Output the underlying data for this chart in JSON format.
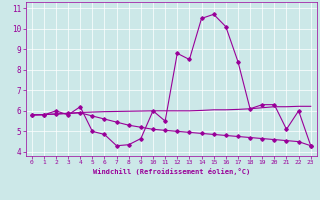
{
  "xlabel": "Windchill (Refroidissement éolien,°C)",
  "bg_color": "#cce8e8",
  "axis_bg_color": "#cce8e8",
  "bottom_bar_color": "#660066",
  "line_color": "#990099",
  "xlim": [
    -0.5,
    23.5
  ],
  "ylim": [
    3.8,
    11.3
  ],
  "yticks": [
    4,
    5,
    6,
    7,
    8,
    9,
    10,
    11
  ],
  "xticks": [
    0,
    1,
    2,
    3,
    4,
    5,
    6,
    7,
    8,
    9,
    10,
    11,
    12,
    13,
    14,
    15,
    16,
    17,
    18,
    19,
    20,
    21,
    22,
    23
  ],
  "series1_x": [
    0,
    1,
    2,
    3,
    4,
    5,
    6,
    7,
    8,
    9,
    10,
    11,
    12,
    13,
    14,
    15,
    16,
    17,
    18,
    19,
    20,
    21,
    22,
    23
  ],
  "series1_y": [
    5.8,
    5.8,
    6.0,
    5.8,
    6.2,
    5.0,
    4.85,
    4.3,
    4.35,
    4.65,
    6.0,
    5.5,
    8.8,
    8.5,
    10.5,
    10.7,
    10.1,
    8.4,
    6.1,
    6.3,
    6.3,
    5.1,
    6.0,
    4.3
  ],
  "series2_x": [
    0,
    1,
    2,
    3,
    4,
    5,
    6,
    7,
    8,
    9,
    10,
    11,
    12,
    13,
    14,
    15,
    16,
    17,
    18,
    19,
    20,
    21,
    22,
    23
  ],
  "series2_y": [
    5.8,
    5.82,
    5.84,
    5.87,
    5.9,
    5.75,
    5.6,
    5.45,
    5.3,
    5.2,
    5.1,
    5.05,
    5.0,
    4.95,
    4.9,
    4.85,
    4.8,
    4.75,
    4.7,
    4.65,
    4.6,
    4.55,
    4.5,
    4.3
  ],
  "series3_x": [
    0,
    1,
    2,
    3,
    4,
    5,
    6,
    7,
    8,
    9,
    10,
    11,
    12,
    13,
    14,
    15,
    16,
    17,
    18,
    19,
    20,
    21,
    22,
    23
  ],
  "series3_y": [
    5.8,
    5.82,
    5.85,
    5.88,
    5.92,
    5.94,
    5.96,
    5.97,
    5.98,
    5.99,
    6.0,
    6.0,
    6.0,
    6.0,
    6.02,
    6.05,
    6.05,
    6.07,
    6.1,
    6.15,
    6.2,
    6.2,
    6.22,
    6.22
  ]
}
